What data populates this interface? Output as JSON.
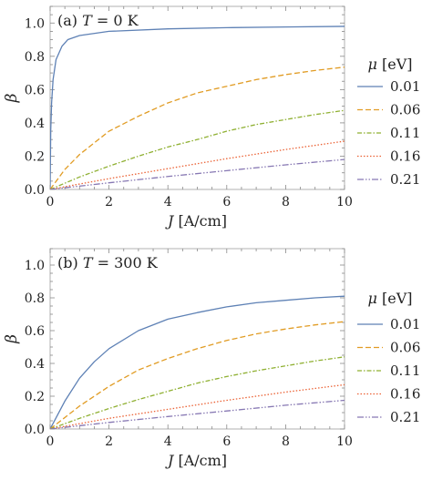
{
  "chart_data": [
    {
      "type": "line",
      "panel_label": "(a)",
      "title_var": "T",
      "title_eq": "= 0 K",
      "xlabel_var": "J",
      "xlabel_unit": "[A/cm]",
      "ylabel": "β",
      "xlim": [
        0,
        10
      ],
      "ylim": [
        0,
        1.1
      ],
      "xticks": [
        0,
        2,
        4,
        6,
        8,
        10
      ],
      "yticks": [
        0.0,
        0.2,
        0.4,
        0.6,
        0.8,
        1.0
      ],
      "ytick_labels": [
        "0.0",
        "0.2",
        "0.4",
        "0.6",
        "0.8",
        "1.0"
      ],
      "legend_title_var": "μ",
      "legend_title_unit": "[eV]",
      "legend_placement": "right",
      "grid": false,
      "series": [
        {
          "name": "0.01",
          "color": "#5E81B5",
          "dash": "",
          "x": [
            0,
            0.02,
            0.05,
            0.1,
            0.2,
            0.4,
            0.6,
            1,
            2,
            4,
            6,
            8,
            10
          ],
          "y": [
            0,
            0.35,
            0.52,
            0.66,
            0.78,
            0.86,
            0.9,
            0.925,
            0.95,
            0.965,
            0.972,
            0.976,
            0.98
          ]
        },
        {
          "name": "0.06",
          "color": "#E19C24",
          "dash": "6,3",
          "x": [
            0,
            0.5,
            1,
            2,
            3,
            4,
            5,
            6,
            7,
            8,
            9,
            10
          ],
          "y": [
            0,
            0.12,
            0.21,
            0.35,
            0.44,
            0.52,
            0.58,
            0.62,
            0.66,
            0.69,
            0.715,
            0.735
          ]
        },
        {
          "name": "0.11",
          "color": "#8FB032",
          "dash": "5,2,1.5,2",
          "x": [
            0,
            1,
            2,
            3,
            4,
            5,
            6,
            7,
            8,
            9,
            10
          ],
          "y": [
            0,
            0.075,
            0.14,
            0.2,
            0.255,
            0.3,
            0.35,
            0.39,
            0.42,
            0.45,
            0.475
          ]
        },
        {
          "name": "0.16",
          "color": "#EB6235",
          "dash": "1.5,2",
          "x": [
            0,
            2,
            4,
            6,
            8,
            10
          ],
          "y": [
            0,
            0.065,
            0.125,
            0.185,
            0.24,
            0.29
          ]
        },
        {
          "name": "0.21",
          "color": "#8778B3",
          "dash": "7,2,1.5,2,1.5,2",
          "x": [
            0,
            2,
            4,
            6,
            8,
            10
          ],
          "y": [
            0,
            0.04,
            0.078,
            0.113,
            0.148,
            0.18
          ]
        }
      ]
    },
    {
      "type": "line",
      "panel_label": "(b)",
      "title_var": "T",
      "title_eq": "= 300 K",
      "xlabel_var": "J",
      "xlabel_unit": "[A/cm]",
      "ylabel": "β",
      "xlim": [
        0,
        10
      ],
      "ylim": [
        0,
        1.1
      ],
      "xticks": [
        0,
        2,
        4,
        6,
        8,
        10
      ],
      "yticks": [
        0.0,
        0.2,
        0.4,
        0.6,
        0.8,
        1.0
      ],
      "ytick_labels": [
        "0.0",
        "0.2",
        "0.4",
        "0.6",
        "0.8",
        "1.0"
      ],
      "legend_title_var": "μ",
      "legend_title_unit": "[eV]",
      "legend_placement": "right",
      "grid": false,
      "series": [
        {
          "name": "0.01",
          "color": "#5E81B5",
          "dash": "",
          "x": [
            0,
            0.5,
            1,
            1.5,
            2,
            3,
            4,
            5,
            6,
            7,
            8,
            9,
            10
          ],
          "y": [
            0,
            0.17,
            0.31,
            0.41,
            0.49,
            0.6,
            0.67,
            0.71,
            0.745,
            0.77,
            0.785,
            0.8,
            0.81
          ]
        },
        {
          "name": "0.06",
          "color": "#E19C24",
          "dash": "6,3",
          "x": [
            0,
            1,
            2,
            3,
            4,
            5,
            6,
            7,
            8,
            9,
            10
          ],
          "y": [
            0,
            0.14,
            0.26,
            0.36,
            0.43,
            0.49,
            0.54,
            0.58,
            0.61,
            0.635,
            0.655
          ]
        },
        {
          "name": "0.11",
          "color": "#8FB032",
          "dash": "5,2,1.5,2",
          "x": [
            0,
            1,
            2,
            3,
            4,
            5,
            6,
            7,
            8,
            9,
            10
          ],
          "y": [
            0,
            0.065,
            0.125,
            0.18,
            0.23,
            0.28,
            0.32,
            0.355,
            0.385,
            0.415,
            0.44
          ]
        },
        {
          "name": "0.16",
          "color": "#EB6235",
          "dash": "1.5,2",
          "x": [
            0,
            2,
            4,
            6,
            8,
            10
          ],
          "y": [
            0,
            0.065,
            0.12,
            0.175,
            0.225,
            0.27
          ]
        },
        {
          "name": "0.21",
          "color": "#8778B3",
          "dash": "7,2,1.5,2,1.5,2",
          "x": [
            0,
            2,
            4,
            6,
            8,
            10
          ],
          "y": [
            0,
            0.04,
            0.076,
            0.11,
            0.145,
            0.175
          ]
        }
      ]
    }
  ]
}
